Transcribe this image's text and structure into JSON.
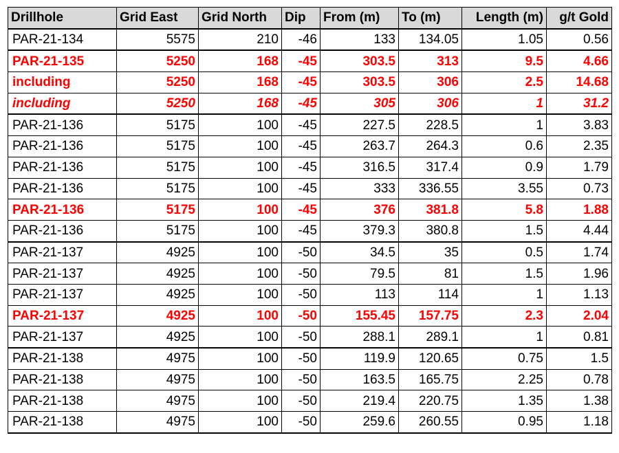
{
  "table": {
    "headers": [
      "Drillhole",
      "Grid East",
      "Grid North",
      "Dip",
      "From (m)",
      "To (m)",
      "Length (m)",
      "g/t Gold"
    ],
    "rows": [
      {
        "cells": [
          "PAR-21-134",
          "5575",
          "210",
          "-46",
          "133",
          "134.05",
          "1.05",
          "0.56"
        ],
        "style": "normal",
        "group_start": false
      },
      {
        "cells": [
          "PAR-21-135",
          "5250",
          "168",
          "-45",
          "303.5",
          "313",
          "9.5",
          "4.66"
        ],
        "style": "highlight",
        "group_start": true
      },
      {
        "cells": [
          "including",
          "5250",
          "168",
          "-45",
          "303.5",
          "306",
          "2.5",
          "14.68"
        ],
        "style": "highlight",
        "group_start": false
      },
      {
        "cells": [
          "including",
          "5250",
          "168",
          "-45",
          "305",
          "306",
          "1",
          "31.2"
        ],
        "style": "highlight-italic",
        "group_start": false
      },
      {
        "cells": [
          "PAR-21-136",
          "5175",
          "100",
          "-45",
          "227.5",
          "228.5",
          "1",
          "3.83"
        ],
        "style": "normal",
        "group_start": true
      },
      {
        "cells": [
          "PAR-21-136",
          "5175",
          "100",
          "-45",
          "263.7",
          "264.3",
          "0.6",
          "2.35"
        ],
        "style": "normal",
        "group_start": false
      },
      {
        "cells": [
          "PAR-21-136",
          "5175",
          "100",
          "-45",
          "316.5",
          "317.4",
          "0.9",
          "1.79"
        ],
        "style": "normal",
        "group_start": false
      },
      {
        "cells": [
          "PAR-21-136",
          "5175",
          "100",
          "-45",
          "333",
          "336.55",
          "3.55",
          "0.73"
        ],
        "style": "normal",
        "group_start": false
      },
      {
        "cells": [
          "PAR-21-136",
          "5175",
          "100",
          "-45",
          "376",
          "381.8",
          "5.8",
          "1.88"
        ],
        "style": "highlight",
        "group_start": false
      },
      {
        "cells": [
          "PAR-21-136",
          "5175",
          "100",
          "-45",
          "379.3",
          "380.8",
          "1.5",
          "4.44"
        ],
        "style": "normal",
        "group_start": false
      },
      {
        "cells": [
          "PAR-21-137",
          "4925",
          "100",
          "-50",
          "34.5",
          "35",
          "0.5",
          "1.74"
        ],
        "style": "normal",
        "group_start": true
      },
      {
        "cells": [
          "PAR-21-137",
          "4925",
          "100",
          "-50",
          "79.5",
          "81",
          "1.5",
          "1.96"
        ],
        "style": "normal",
        "group_start": false
      },
      {
        "cells": [
          "PAR-21-137",
          "4925",
          "100",
          "-50",
          "113",
          "114",
          "1",
          "1.13"
        ],
        "style": "normal",
        "group_start": false
      },
      {
        "cells": [
          "PAR-21-137",
          "4925",
          "100",
          "-50",
          "155.45",
          "157.75",
          "2.3",
          "2.04"
        ],
        "style": "highlight",
        "group_start": false
      },
      {
        "cells": [
          "PAR-21-137",
          "4925",
          "100",
          "-50",
          "288.1",
          "289.1",
          "1",
          "0.81"
        ],
        "style": "normal",
        "group_start": false
      },
      {
        "cells": [
          "PAR-21-138",
          "4975",
          "100",
          "-50",
          "119.9",
          "120.65",
          "0.75",
          "1.5"
        ],
        "style": "normal",
        "group_start": true
      },
      {
        "cells": [
          "PAR-21-138",
          "4975",
          "100",
          "-50",
          "163.5",
          "165.75",
          "2.25",
          "0.78"
        ],
        "style": "normal",
        "group_start": false
      },
      {
        "cells": [
          "PAR-21-138",
          "4975",
          "100",
          "-50",
          "219.4",
          "220.75",
          "1.35",
          "1.38"
        ],
        "style": "normal",
        "group_start": false
      },
      {
        "cells": [
          "PAR-21-138",
          "4975",
          "100",
          "-50",
          "259.6",
          "260.55",
          "0.95",
          "1.18"
        ],
        "style": "normal",
        "group_start": false
      }
    ]
  },
  "colors": {
    "header_background": "#d9d9d9",
    "highlight_text": "#ff0000",
    "normal_text": "#000000",
    "border": "#000000"
  }
}
